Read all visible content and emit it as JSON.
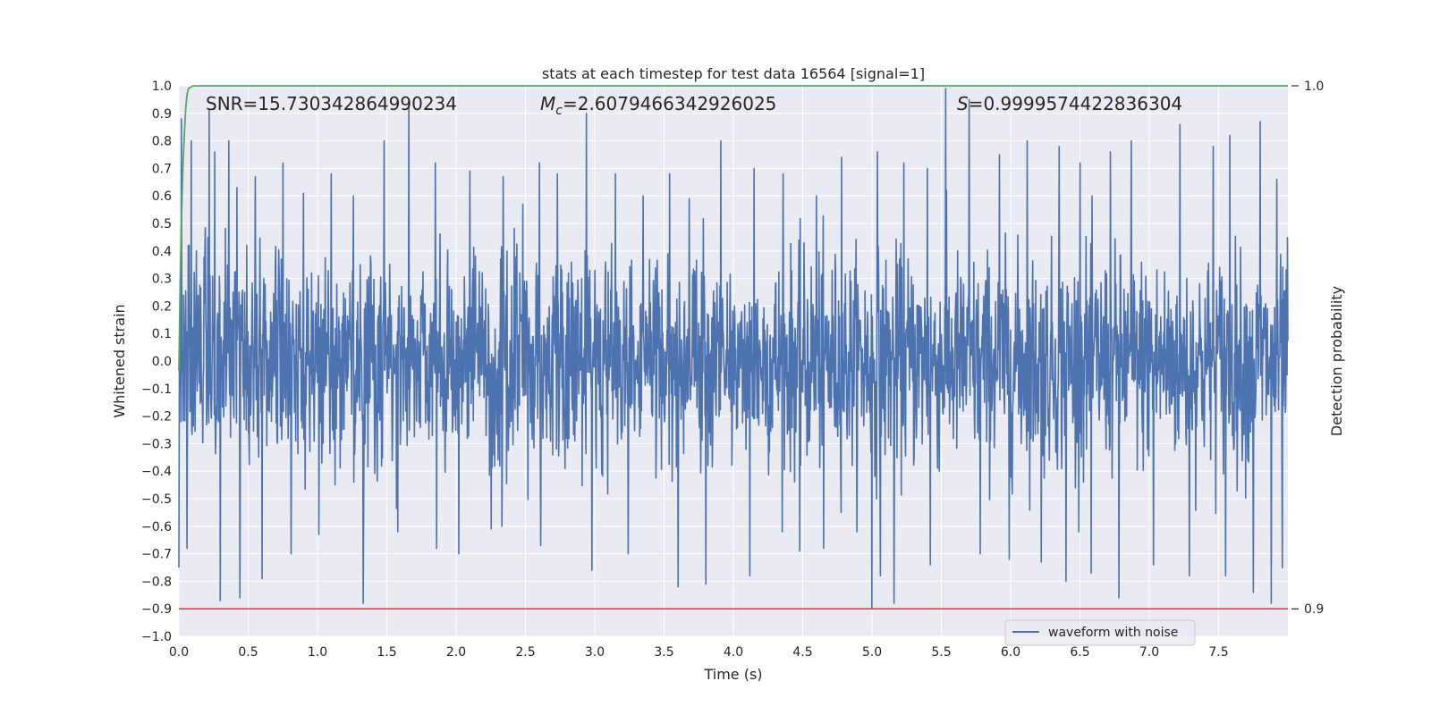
{
  "chart_data": {
    "type": "line",
    "title": "stats at each timestep for test data 16564 [signal=1]",
    "xlabel": "Time (s)",
    "ylabel": "Whitened strain",
    "y2label": "Detection probability",
    "xlim": [
      0.0,
      8.0
    ],
    "ylim": [
      -1.0,
      1.0
    ],
    "y2lim": [
      0.9,
      1.0
    ],
    "x_ticks": [
      "0.0",
      "0.5",
      "1.0",
      "1.5",
      "2.0",
      "2.5",
      "3.0",
      "3.5",
      "4.0",
      "4.5",
      "5.0",
      "5.5",
      "6.0",
      "6.5",
      "7.0",
      "7.5"
    ],
    "y_ticks": [
      "1.0",
      "0.9",
      "0.8",
      "0.7",
      "0.6",
      "0.5",
      "0.4",
      "0.3",
      "0.2",
      "0.1",
      "0.0",
      "−0.1",
      "−0.2",
      "−0.3",
      "−0.4",
      "−0.5",
      "−0.6",
      "−0.7",
      "−0.8",
      "−0.9",
      "−1.0"
    ],
    "y2_ticks": [
      "1.0",
      "0.9"
    ],
    "grid": true,
    "annotations": {
      "snr_label": "SNR=15.730342864990234",
      "mc_label": "=2.6079466342926025",
      "mc_symbol": "M",
      "mc_subscript": "c",
      "s_symbol": "S",
      "s_label": "=0.9999574422836304"
    },
    "series": [
      {
        "name": "waveform with noise",
        "color": "#4c72b0",
        "kind": "noisy-waveform",
        "duration": 8.0,
        "peaks": [
          {
            "x": 0.02,
            "y": 0.88
          },
          {
            "x": 0.09,
            "y": 0.8
          },
          {
            "x": 0.22,
            "y": 0.91
          },
          {
            "x": 0.26,
            "y": 0.76
          },
          {
            "x": 0.36,
            "y": 0.8
          },
          {
            "x": 0.42,
            "y": 0.63
          },
          {
            "x": 0.55,
            "y": 0.67
          },
          {
            "x": 0.75,
            "y": 0.72
          },
          {
            "x": 0.9,
            "y": 0.61
          },
          {
            "x": 1.1,
            "y": 0.68
          },
          {
            "x": 1.26,
            "y": 0.6
          },
          {
            "x": 1.48,
            "y": 0.8
          },
          {
            "x": 1.66,
            "y": 0.94
          },
          {
            "x": 1.85,
            "y": 0.72
          },
          {
            "x": 2.1,
            "y": 0.69
          },
          {
            "x": 2.34,
            "y": 0.67
          },
          {
            "x": 2.48,
            "y": 0.57
          },
          {
            "x": 2.6,
            "y": 0.72
          },
          {
            "x": 2.73,
            "y": 0.68
          },
          {
            "x": 2.94,
            "y": 0.9
          },
          {
            "x": 3.15,
            "y": 0.68
          },
          {
            "x": 3.35,
            "y": 0.6
          },
          {
            "x": 3.54,
            "y": 0.68
          },
          {
            "x": 3.68,
            "y": 0.59
          },
          {
            "x": 3.91,
            "y": 0.8
          },
          {
            "x": 4.15,
            "y": 0.7
          },
          {
            "x": 4.36,
            "y": 0.68
          },
          {
            "x": 4.6,
            "y": 0.6
          },
          {
            "x": 4.78,
            "y": 0.74
          },
          {
            "x": 5.04,
            "y": 0.76
          },
          {
            "x": 5.23,
            "y": 0.72
          },
          {
            "x": 5.4,
            "y": 0.7
          },
          {
            "x": 5.53,
            "y": 0.99
          },
          {
            "x": 5.7,
            "y": 0.95
          },
          {
            "x": 5.92,
            "y": 0.75
          },
          {
            "x": 6.12,
            "y": 0.8
          },
          {
            "x": 6.35,
            "y": 0.78
          },
          {
            "x": 6.5,
            "y": 0.72
          },
          {
            "x": 6.72,
            "y": 0.76
          },
          {
            "x": 6.87,
            "y": 0.8
          },
          {
            "x": 7.03,
            "y": 0.9
          },
          {
            "x": 7.22,
            "y": 0.86
          },
          {
            "x": 7.46,
            "y": 0.78
          },
          {
            "x": 7.58,
            "y": 0.82
          },
          {
            "x": 7.75,
            "y": 0.88
          },
          {
            "x": 7.8,
            "y": 0.87
          },
          {
            "x": 7.92,
            "y": 0.66
          }
        ],
        "troughs": [
          {
            "x": 0.0,
            "y": -0.75
          },
          {
            "x": 0.06,
            "y": -0.68
          },
          {
            "x": 0.3,
            "y": -0.87
          },
          {
            "x": 0.44,
            "y": -0.86
          },
          {
            "x": 0.6,
            "y": -0.79
          },
          {
            "x": 0.81,
            "y": -0.7
          },
          {
            "x": 1.01,
            "y": -0.63
          },
          {
            "x": 1.33,
            "y": -0.88
          },
          {
            "x": 1.58,
            "y": -0.62
          },
          {
            "x": 1.86,
            "y": -0.68
          },
          {
            "x": 2.02,
            "y": -0.7
          },
          {
            "x": 2.33,
            "y": -0.6
          },
          {
            "x": 2.61,
            "y": -0.67
          },
          {
            "x": 2.98,
            "y": -0.76
          },
          {
            "x": 3.24,
            "y": -0.7
          },
          {
            "x": 3.6,
            "y": -0.82
          },
          {
            "x": 3.8,
            "y": -0.81
          },
          {
            "x": 4.12,
            "y": -0.78
          },
          {
            "x": 4.48,
            "y": -0.69
          },
          {
            "x": 4.65,
            "y": -0.68
          },
          {
            "x": 5.0,
            "y": -0.9
          },
          {
            "x": 5.06,
            "y": -0.78
          },
          {
            "x": 5.16,
            "y": -0.88
          },
          {
            "x": 5.42,
            "y": -0.74
          },
          {
            "x": 5.78,
            "y": -0.7
          },
          {
            "x": 5.99,
            "y": -0.72
          },
          {
            "x": 6.22,
            "y": -0.73
          },
          {
            "x": 6.4,
            "y": -0.8
          },
          {
            "x": 6.58,
            "y": -0.77
          },
          {
            "x": 6.78,
            "y": -0.86
          },
          {
            "x": 7.03,
            "y": -0.74
          },
          {
            "x": 7.29,
            "y": -0.78
          },
          {
            "x": 7.55,
            "y": -0.78
          },
          {
            "x": 7.75,
            "y": -0.84
          },
          {
            "x": 7.88,
            "y": -0.88
          },
          {
            "x": 7.96,
            "y": -0.75
          }
        ]
      },
      {
        "color": "#55a868",
        "axis": "right",
        "kind": "detection-probability",
        "x": [
          0.0,
          0.01,
          0.02,
          0.03,
          0.04,
          0.05,
          0.06,
          0.07,
          0.1,
          0.2,
          8.0
        ],
        "y": [
          0.9455,
          0.963,
          0.976,
          0.985,
          0.991,
          0.996,
          0.9985,
          0.9995,
          0.99998,
          1.0,
          1.0
        ]
      },
      {
        "color": "#c44e52",
        "axis": "right",
        "kind": "threshold",
        "x": [
          0.0,
          8.0
        ],
        "y": [
          0.9,
          0.9
        ]
      }
    ],
    "legend": {
      "position": "lower-right",
      "entries": [
        "waveform with noise"
      ]
    },
    "colors": {
      "background": "#eaeaf2",
      "grid": "#ffffff",
      "waveform": "#4c72b0",
      "probability": "#55a868",
      "threshold": "#c44e52"
    }
  }
}
